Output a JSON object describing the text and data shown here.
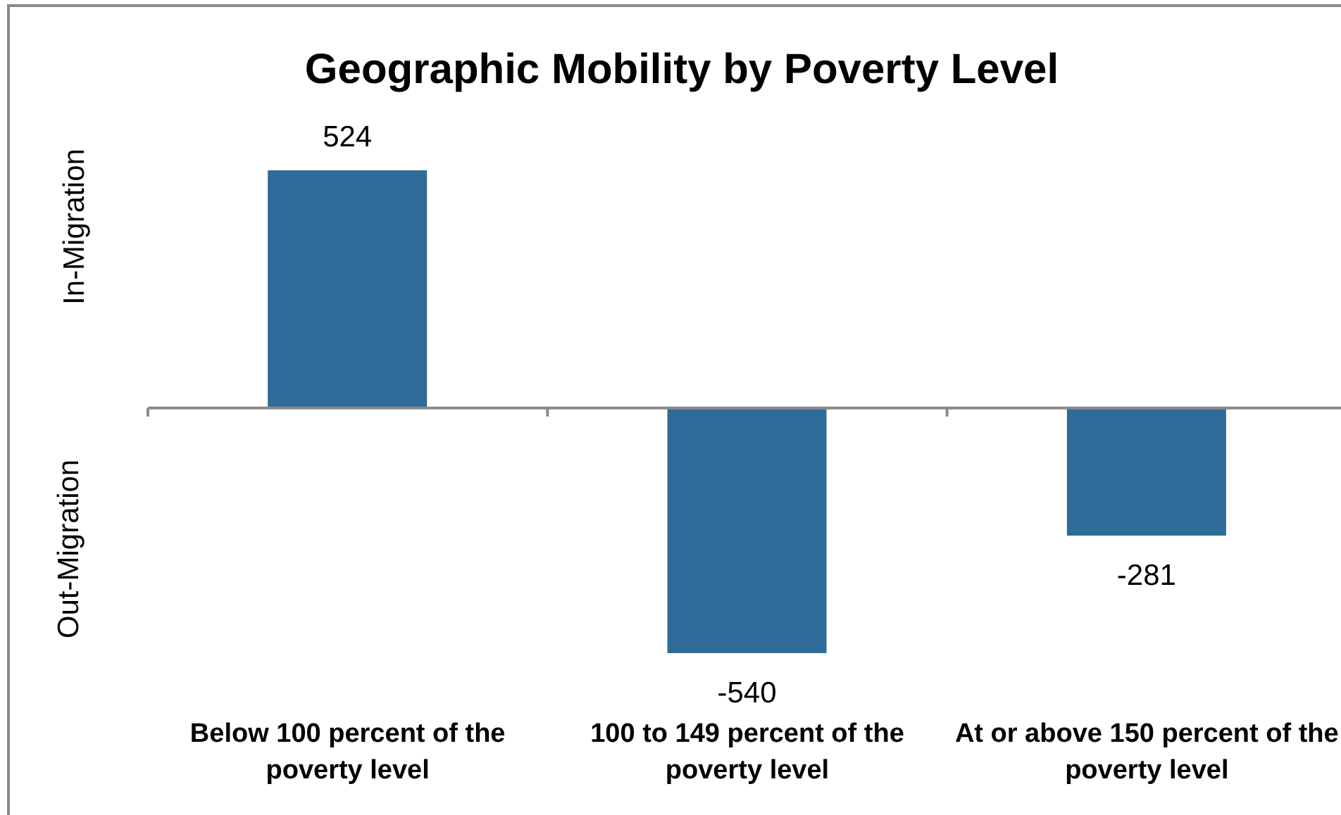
{
  "chart_data": {
    "type": "bar",
    "title": "Geographic Mobility by Poverty Level",
    "categories": [
      "Below 100 percent of the poverty level",
      "100 to 149 percent of the poverty level",
      "At or above 150 percent of the poverty level"
    ],
    "values": [
      524,
      -540,
      -281
    ],
    "color": "#2e6b99",
    "data_labels": true,
    "tick_labels": "x",
    "annotations": [
      "In-Migration",
      "Out-Migration"
    ]
  }
}
